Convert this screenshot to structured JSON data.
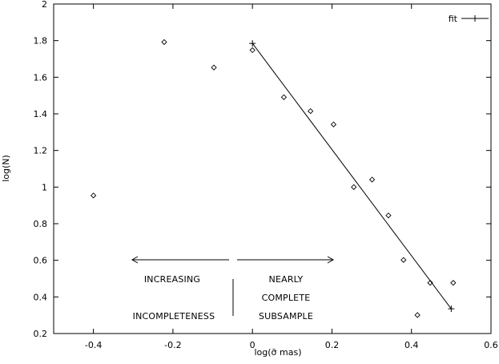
{
  "chart_data": {
    "type": "scatter",
    "title": "",
    "xlabel": "log(σ̄ mas)",
    "ylabel": "log(N)",
    "xlim": [
      -0.5,
      0.6
    ],
    "ylim": [
      0.2,
      2.0
    ],
    "x_ticks": [
      -0.4,
      -0.2,
      0,
      0.2,
      0.4,
      0.6
    ],
    "x_tick_labels": [
      "-0.4",
      "-0.2",
      "0",
      "0.2",
      "0.4",
      "0.6"
    ],
    "y_ticks": [
      0.2,
      0.4,
      0.6,
      0.8,
      1.0,
      1.2,
      1.4,
      1.6,
      1.8,
      2.0
    ],
    "y_tick_labels": [
      "0.2",
      "0.4",
      "0.6",
      "0.8",
      "1",
      "1.2",
      "1.4",
      "1.6",
      "1.8",
      "2"
    ],
    "grid": false,
    "legend_position": "top-right",
    "series": [
      {
        "kind": "points",
        "marker": "diamond",
        "x": [
          -0.4,
          -0.222,
          -0.097,
          0.0,
          0.079,
          0.146,
          0.204,
          0.255,
          0.301,
          0.342,
          0.38,
          0.415,
          0.447,
          0.505
        ],
        "y": [
          0.954,
          1.792,
          1.653,
          1.748,
          1.491,
          1.415,
          1.342,
          1.0,
          1.041,
          0.845,
          0.602,
          0.301,
          0.477,
          0.477
        ]
      },
      {
        "name": "fit",
        "kind": "line",
        "marker": "plus",
        "x": [
          0.0,
          0.5
        ],
        "y": [
          1.785,
          0.335
        ]
      }
    ],
    "annotations": {
      "left": [
        "INCREASING",
        "INCOMPLETENESS"
      ],
      "right": [
        "NEARLY",
        "COMPLETE",
        "SUBSAMPLE"
      ]
    }
  }
}
